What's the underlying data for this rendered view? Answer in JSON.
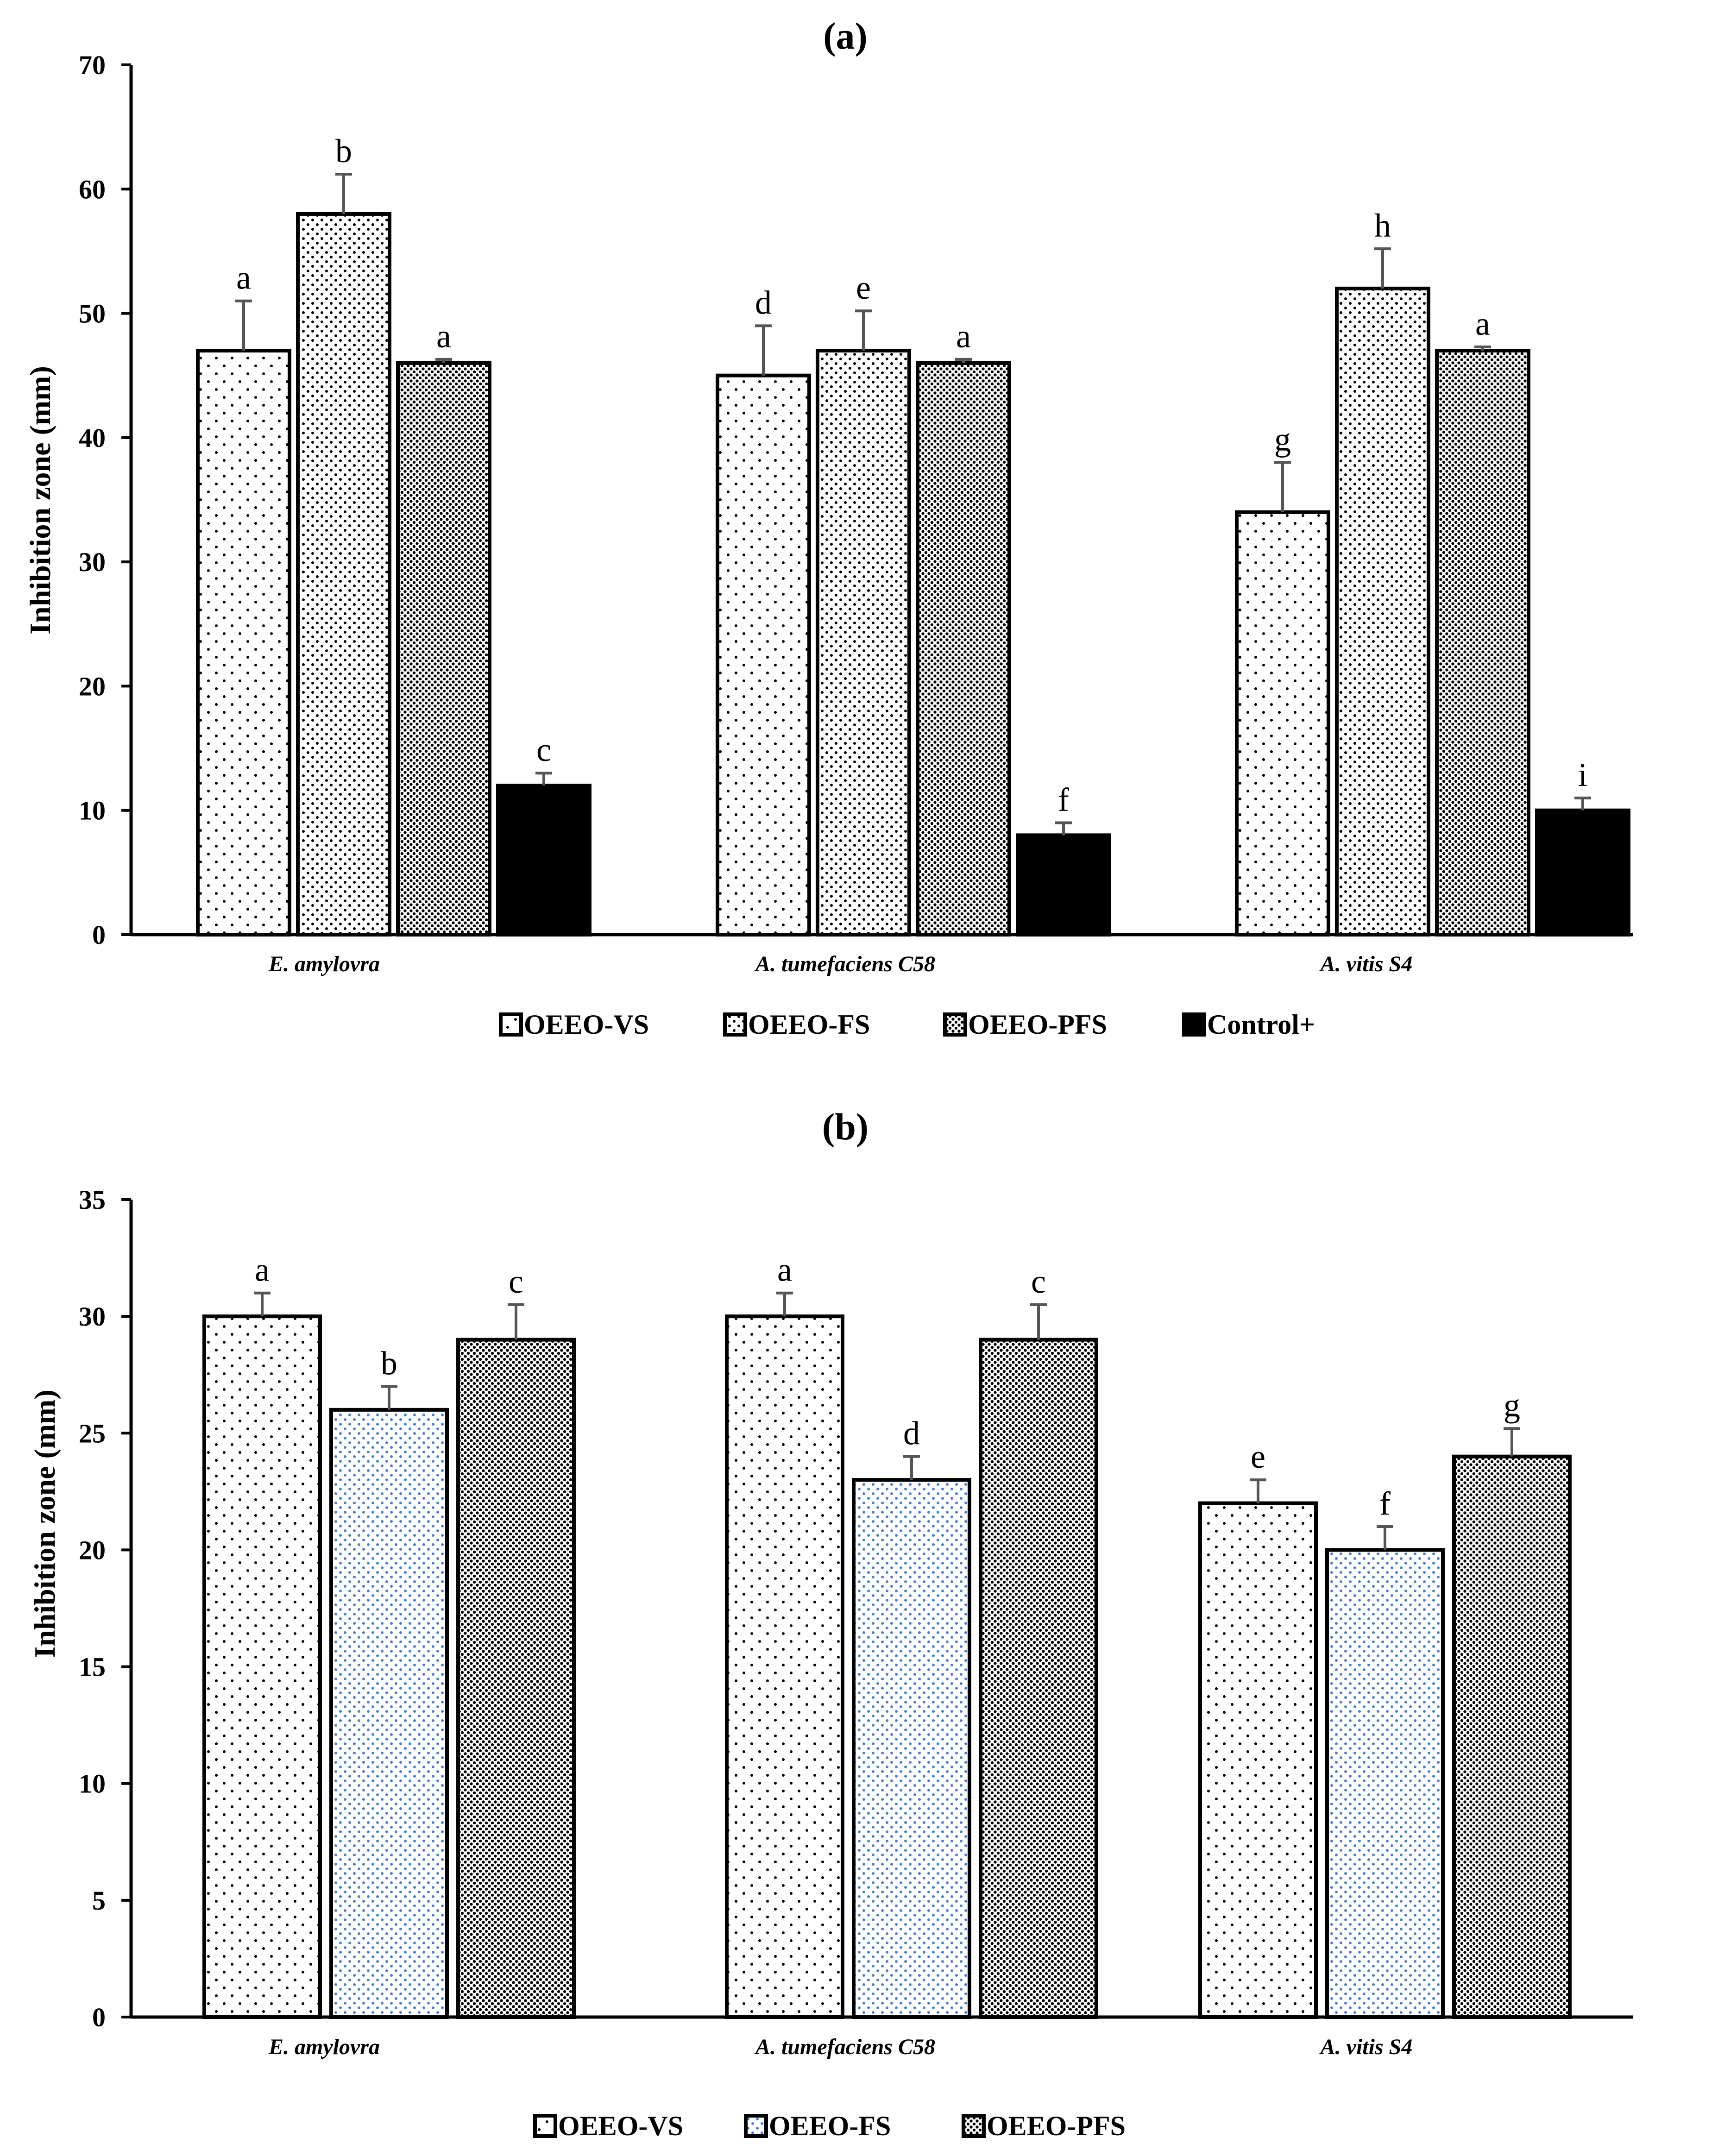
{
  "chart_data": [
    {
      "type": "bar",
      "title": "(a)",
      "ylabel": "Inhibition zone (mm)",
      "xlabel": "",
      "ylim": [
        0,
        70
      ],
      "yticks": [
        "0",
        "10",
        "20",
        "30",
        "40",
        "50",
        "60",
        "70"
      ],
      "categories": [
        "E. amylovra",
        "A. tumefaciens C58",
        "A. vitis S4"
      ],
      "series": [
        {
          "name": "OEEO-VS",
          "pattern": "sparse-dots",
          "dot_color": "#000000",
          "values": [
            47,
            45,
            34
          ],
          "errors": [
            4.0,
            4.0,
            4.0
          ],
          "letters": [
            "a",
            "d",
            "g"
          ]
        },
        {
          "name": "OEEO-FS",
          "pattern": "medium-dots",
          "dot_color": "#000000",
          "values": [
            58,
            47,
            52
          ],
          "errors": [
            3.2,
            3.2,
            3.2
          ],
          "letters": [
            "b",
            "e",
            "h"
          ]
        },
        {
          "name": "OEEO-PFS",
          "pattern": "dense-dots",
          "dot_color": "#000000",
          "values": [
            46,
            46,
            47
          ],
          "errors": [
            0.3,
            0.3,
            0.3
          ],
          "letters": [
            "a",
            "a",
            "a"
          ]
        },
        {
          "name": "Control+",
          "pattern": "solid",
          "dot_color": "#000000",
          "values": [
            12,
            8,
            10
          ],
          "errors": [
            1.0,
            1.0,
            1.0
          ],
          "letters": [
            "c",
            "f",
            "i"
          ]
        }
      ],
      "legend_position": "bottom"
    },
    {
      "type": "bar",
      "title": "(b)",
      "ylabel": "Inhibition zone (mm)",
      "xlabel": "",
      "ylim": [
        0,
        35
      ],
      "yticks": [
        "0",
        "5",
        "10",
        "15",
        "20",
        "25",
        "30",
        "35"
      ],
      "categories": [
        "E. amylovra",
        "A. tumefaciens C58",
        "A. vitis S4"
      ],
      "series": [
        {
          "name": "OEEO-VS",
          "pattern": "sparse-dots",
          "dot_color": "#000000",
          "values": [
            30,
            30,
            22
          ],
          "errors": [
            1.0,
            1.0,
            1.0
          ],
          "letters": [
            "a",
            "a",
            "e"
          ]
        },
        {
          "name": "OEEO-FS",
          "pattern": "medium-dots",
          "dot_color": "#4a7fd0",
          "values": [
            26,
            23,
            20
          ],
          "errors": [
            1.0,
            1.0,
            1.0
          ],
          "letters": [
            "b",
            "d",
            "f"
          ]
        },
        {
          "name": "OEEO-PFS",
          "pattern": "dense-dots",
          "dot_color": "#000000",
          "values": [
            29,
            29,
            24
          ],
          "errors": [
            1.5,
            1.5,
            1.2
          ],
          "letters": [
            "c",
            "c",
            "g"
          ]
        }
      ],
      "legend_position": "bottom"
    }
  ]
}
